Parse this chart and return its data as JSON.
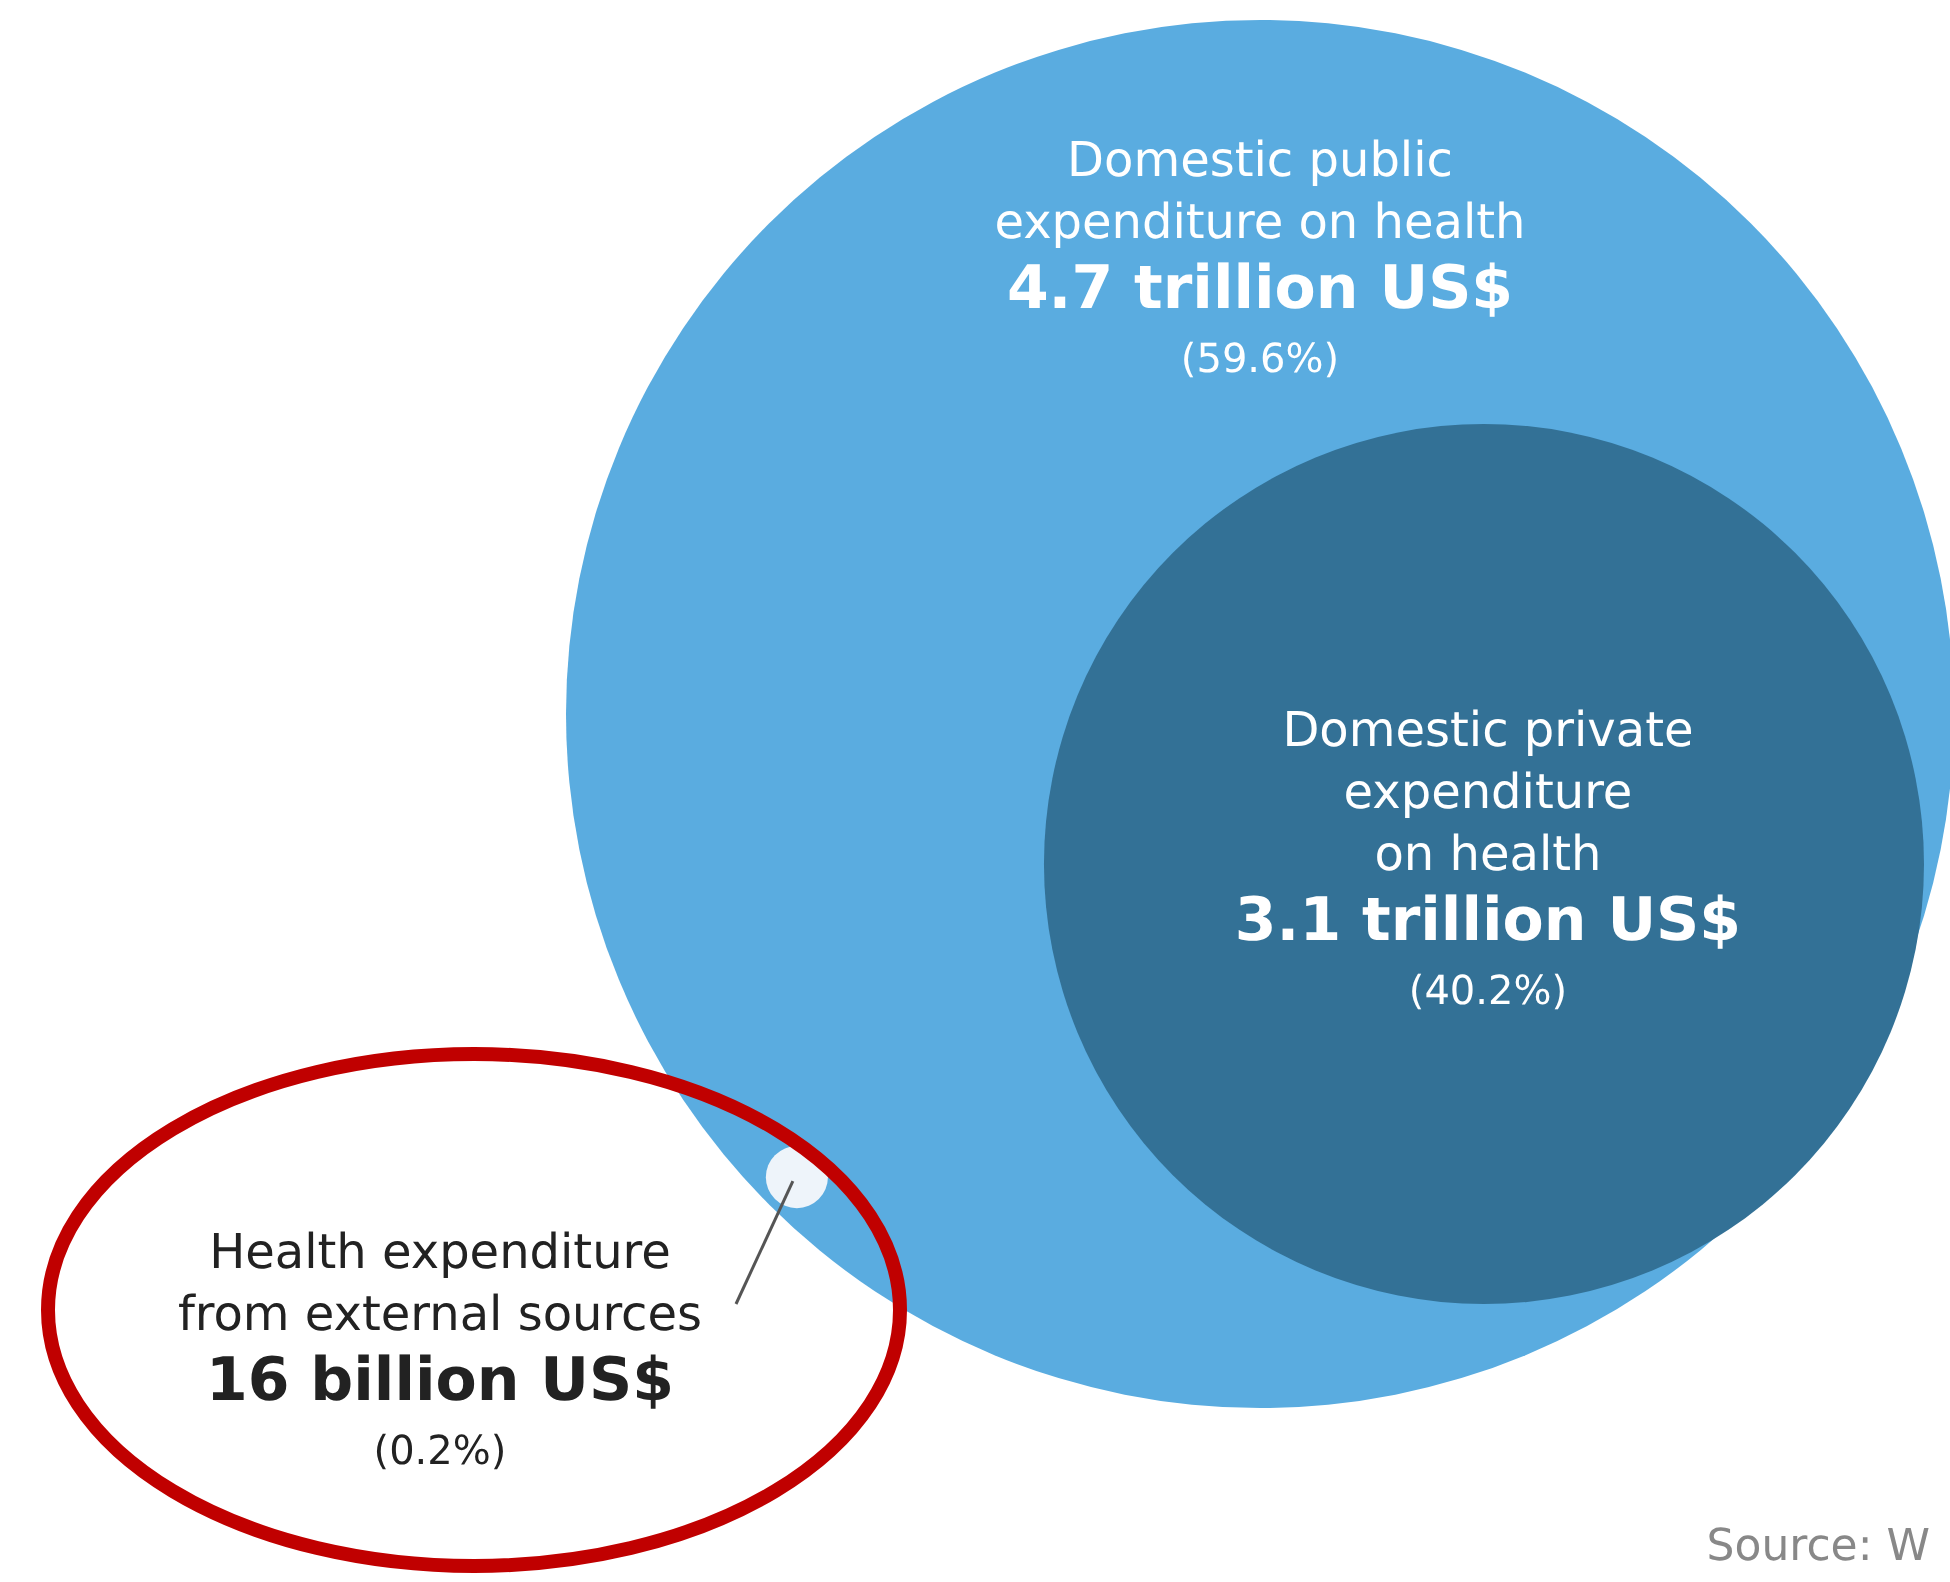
{
  "chart_data": {
    "type": "other",
    "categories": [
      "Domestic public\nexpenditure on health",
      "Domestic private\nexpenditure\non health",
      "Health expenditure\nfrom external sources"
    ],
    "values": [
      59.6,
      40.2,
      0.2
    ],
    "value_labels": [
      "4.7 trillion US$\n(59.6%)",
      "3.1 trillion US$\n(40.2%)",
      "16 billion US$\n(0.2%)"
    ],
    "colors": [
      "#5aace0",
      "#337196",
      "#eef4fa"
    ],
    "annotations": [
      "Source: W"
    ]
  }
}
